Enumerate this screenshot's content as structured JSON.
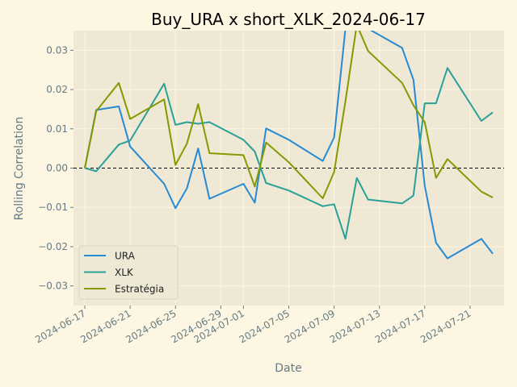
{
  "chart_data": {
    "type": "line",
    "title": "Buy_URA x short_XLK_2024-06-17",
    "xlabel": "Date",
    "ylabel": "Rolling Correlation",
    "ylim": [
      -0.035,
      0.035
    ],
    "yticks": [
      -0.03,
      -0.02,
      -0.01,
      0.0,
      0.01,
      0.02,
      0.03
    ],
    "ytick_labels": [
      "−0.03",
      "−0.02",
      "−0.01",
      "0.00",
      "0.01",
      "0.02",
      "0.03"
    ],
    "xlim": [
      "2024-06-16",
      "2024-07-24"
    ],
    "xticks": [
      "2024-06-17",
      "2024-06-21",
      "2024-06-25",
      "2024-06-29",
      "2024-07-01",
      "2024-07-05",
      "2024-07-09",
      "2024-07-13",
      "2024-07-17",
      "2024-07-21"
    ],
    "grid": true,
    "legend_position": "lower-left",
    "reference_line": {
      "y": 0.0,
      "style": "dashed",
      "color": "#000000"
    },
    "colors": {
      "background": "#fdf6e3",
      "plot_area": "#eee8d5",
      "grid": "#fdf6e3",
      "axis_text": "#657b83"
    },
    "series": [
      {
        "name": "URA",
        "color": "#268bd2",
        "points": [
          [
            "2024-06-17",
            0.0
          ],
          [
            "2024-06-18",
            0.0148
          ],
          [
            "2024-06-20",
            0.0157
          ],
          [
            "2024-06-21",
            0.0055
          ],
          [
            "2024-06-24",
            -0.004
          ],
          [
            "2024-06-25",
            -0.0102
          ],
          [
            "2024-06-26",
            -0.0052
          ],
          [
            "2024-06-27",
            0.005
          ],
          [
            "2024-06-28",
            -0.0078
          ],
          [
            "2024-07-01",
            -0.004
          ],
          [
            "2024-07-02",
            -0.0088
          ],
          [
            "2024-07-03",
            0.0101
          ],
          [
            "2024-07-05",
            0.0072
          ],
          [
            "2024-07-08",
            0.0018
          ],
          [
            "2024-07-09",
            0.0078
          ],
          [
            "2024-07-10",
            0.0355
          ],
          [
            "2024-07-11",
            0.0355
          ],
          [
            "2024-07-12",
            0.0355
          ],
          [
            "2024-07-15",
            0.0306
          ],
          [
            "2024-07-16",
            0.0225
          ],
          [
            "2024-07-17",
            -0.0045
          ],
          [
            "2024-07-18",
            -0.019
          ],
          [
            "2024-07-19",
            -0.023
          ],
          [
            "2024-07-22",
            -0.018
          ],
          [
            "2024-07-23",
            -0.0218
          ]
        ]
      },
      {
        "name": "XLK",
        "color": "#2aa198",
        "points": [
          [
            "2024-06-17",
            0.0
          ],
          [
            "2024-06-18",
            -0.0008
          ],
          [
            "2024-06-20",
            0.006
          ],
          [
            "2024-06-21",
            0.007
          ],
          [
            "2024-06-24",
            0.0215
          ],
          [
            "2024-06-25",
            0.011
          ],
          [
            "2024-06-26",
            0.0117
          ],
          [
            "2024-06-27",
            0.0113
          ],
          [
            "2024-06-28",
            0.0117
          ],
          [
            "2024-07-01",
            0.0072
          ],
          [
            "2024-07-02",
            0.0042
          ],
          [
            "2024-07-03",
            -0.0038
          ],
          [
            "2024-07-05",
            -0.0057
          ],
          [
            "2024-07-08",
            -0.0097
          ],
          [
            "2024-07-09",
            -0.0092
          ],
          [
            "2024-07-10",
            -0.018
          ],
          [
            "2024-07-11",
            -0.0025
          ],
          [
            "2024-07-12",
            -0.008
          ],
          [
            "2024-07-15",
            -0.009
          ],
          [
            "2024-07-16",
            -0.007
          ],
          [
            "2024-07-17",
            0.0165
          ],
          [
            "2024-07-18",
            0.0165
          ],
          [
            "2024-07-19",
            0.0255
          ],
          [
            "2024-07-22",
            0.012
          ],
          [
            "2024-07-23",
            0.0142
          ]
        ]
      },
      {
        "name": "Estratégia",
        "color": "#859900",
        "points": [
          [
            "2024-06-17",
            0.0
          ],
          [
            "2024-06-18",
            0.0145
          ],
          [
            "2024-06-20",
            0.0217
          ],
          [
            "2024-06-21",
            0.0125
          ],
          [
            "2024-06-24",
            0.0175
          ],
          [
            "2024-06-25",
            0.0008
          ],
          [
            "2024-06-26",
            0.0062
          ],
          [
            "2024-06-27",
            0.0163
          ],
          [
            "2024-06-28",
            0.0038
          ],
          [
            "2024-07-01",
            0.0033
          ],
          [
            "2024-07-02",
            -0.0047
          ],
          [
            "2024-07-03",
            0.0065
          ],
          [
            "2024-07-05",
            0.0015
          ],
          [
            "2024-07-08",
            -0.0077
          ],
          [
            "2024-07-09",
            -0.001
          ],
          [
            "2024-07-10",
            0.017
          ],
          [
            "2024-07-11",
            0.0365
          ],
          [
            "2024-07-12",
            0.0298
          ],
          [
            "2024-07-15",
            0.0217
          ],
          [
            "2024-07-16",
            0.016
          ],
          [
            "2024-07-17",
            0.0117
          ],
          [
            "2024-07-18",
            -0.0025
          ],
          [
            "2024-07-19",
            0.0023
          ],
          [
            "2024-07-22",
            -0.006
          ],
          [
            "2024-07-23",
            -0.0075
          ]
        ]
      }
    ]
  }
}
